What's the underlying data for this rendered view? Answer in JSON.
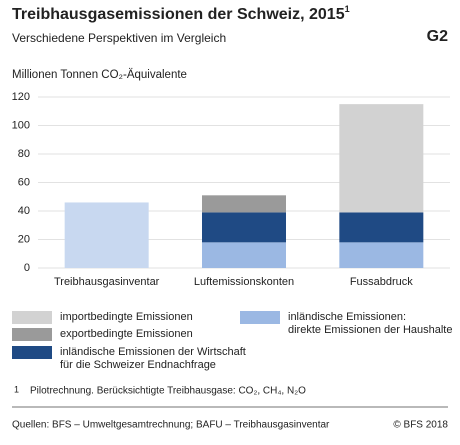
{
  "chart_data": {
    "type": "stacked_bar",
    "title": "Treibhausgasemissionen der Schweiz, 2015",
    "title_note": "1",
    "subtitle": "Verschiedene Perspektiven im Vergleich",
    "chart_id": "G2",
    "y_label": "Millionen Tonnen CO₂-Äquivalente",
    "categories": [
      "Treibhausgasinventar",
      "Luftemissionskonten",
      "Fussabdruck"
    ],
    "series": [
      {
        "color": "#c8d8f0",
        "values": [
          46,
          null,
          null
        ]
      },
      {
        "name": "inländische Emissionen:\ndirekte Emissionen der Haushalte",
        "color": "#9bb8e3",
        "values": [
          null,
          18,
          18
        ]
      },
      {
        "name": "inländische Emissionen der Wirtschaft\nfür die Schweizer Endnachfrage",
        "color": "#1f4a84",
        "values": [
          null,
          21,
          21
        ]
      },
      {
        "name": "exportbedingte Emissionen",
        "color": "#9a9a9a",
        "values": [
          null,
          12,
          null
        ]
      },
      {
        "name": "importbedingte Emissionen",
        "color": "#d2d2d2",
        "values": [
          null,
          null,
          76
        ]
      }
    ],
    "ylim": [
      0,
      120
    ],
    "yticks": [
      0,
      20,
      40,
      60,
      80,
      100,
      120
    ],
    "grid": true,
    "footnote_marker": "1",
    "footnote": "Pilotrechnung. Berücksichtigte Treibhausgase: CO₂, CH₄, N₂O",
    "source": "Quellen: BFS – Umweltgesamtrechnung; BAFU – Treibhausgasinventar",
    "copyright": "© BFS 2018"
  }
}
